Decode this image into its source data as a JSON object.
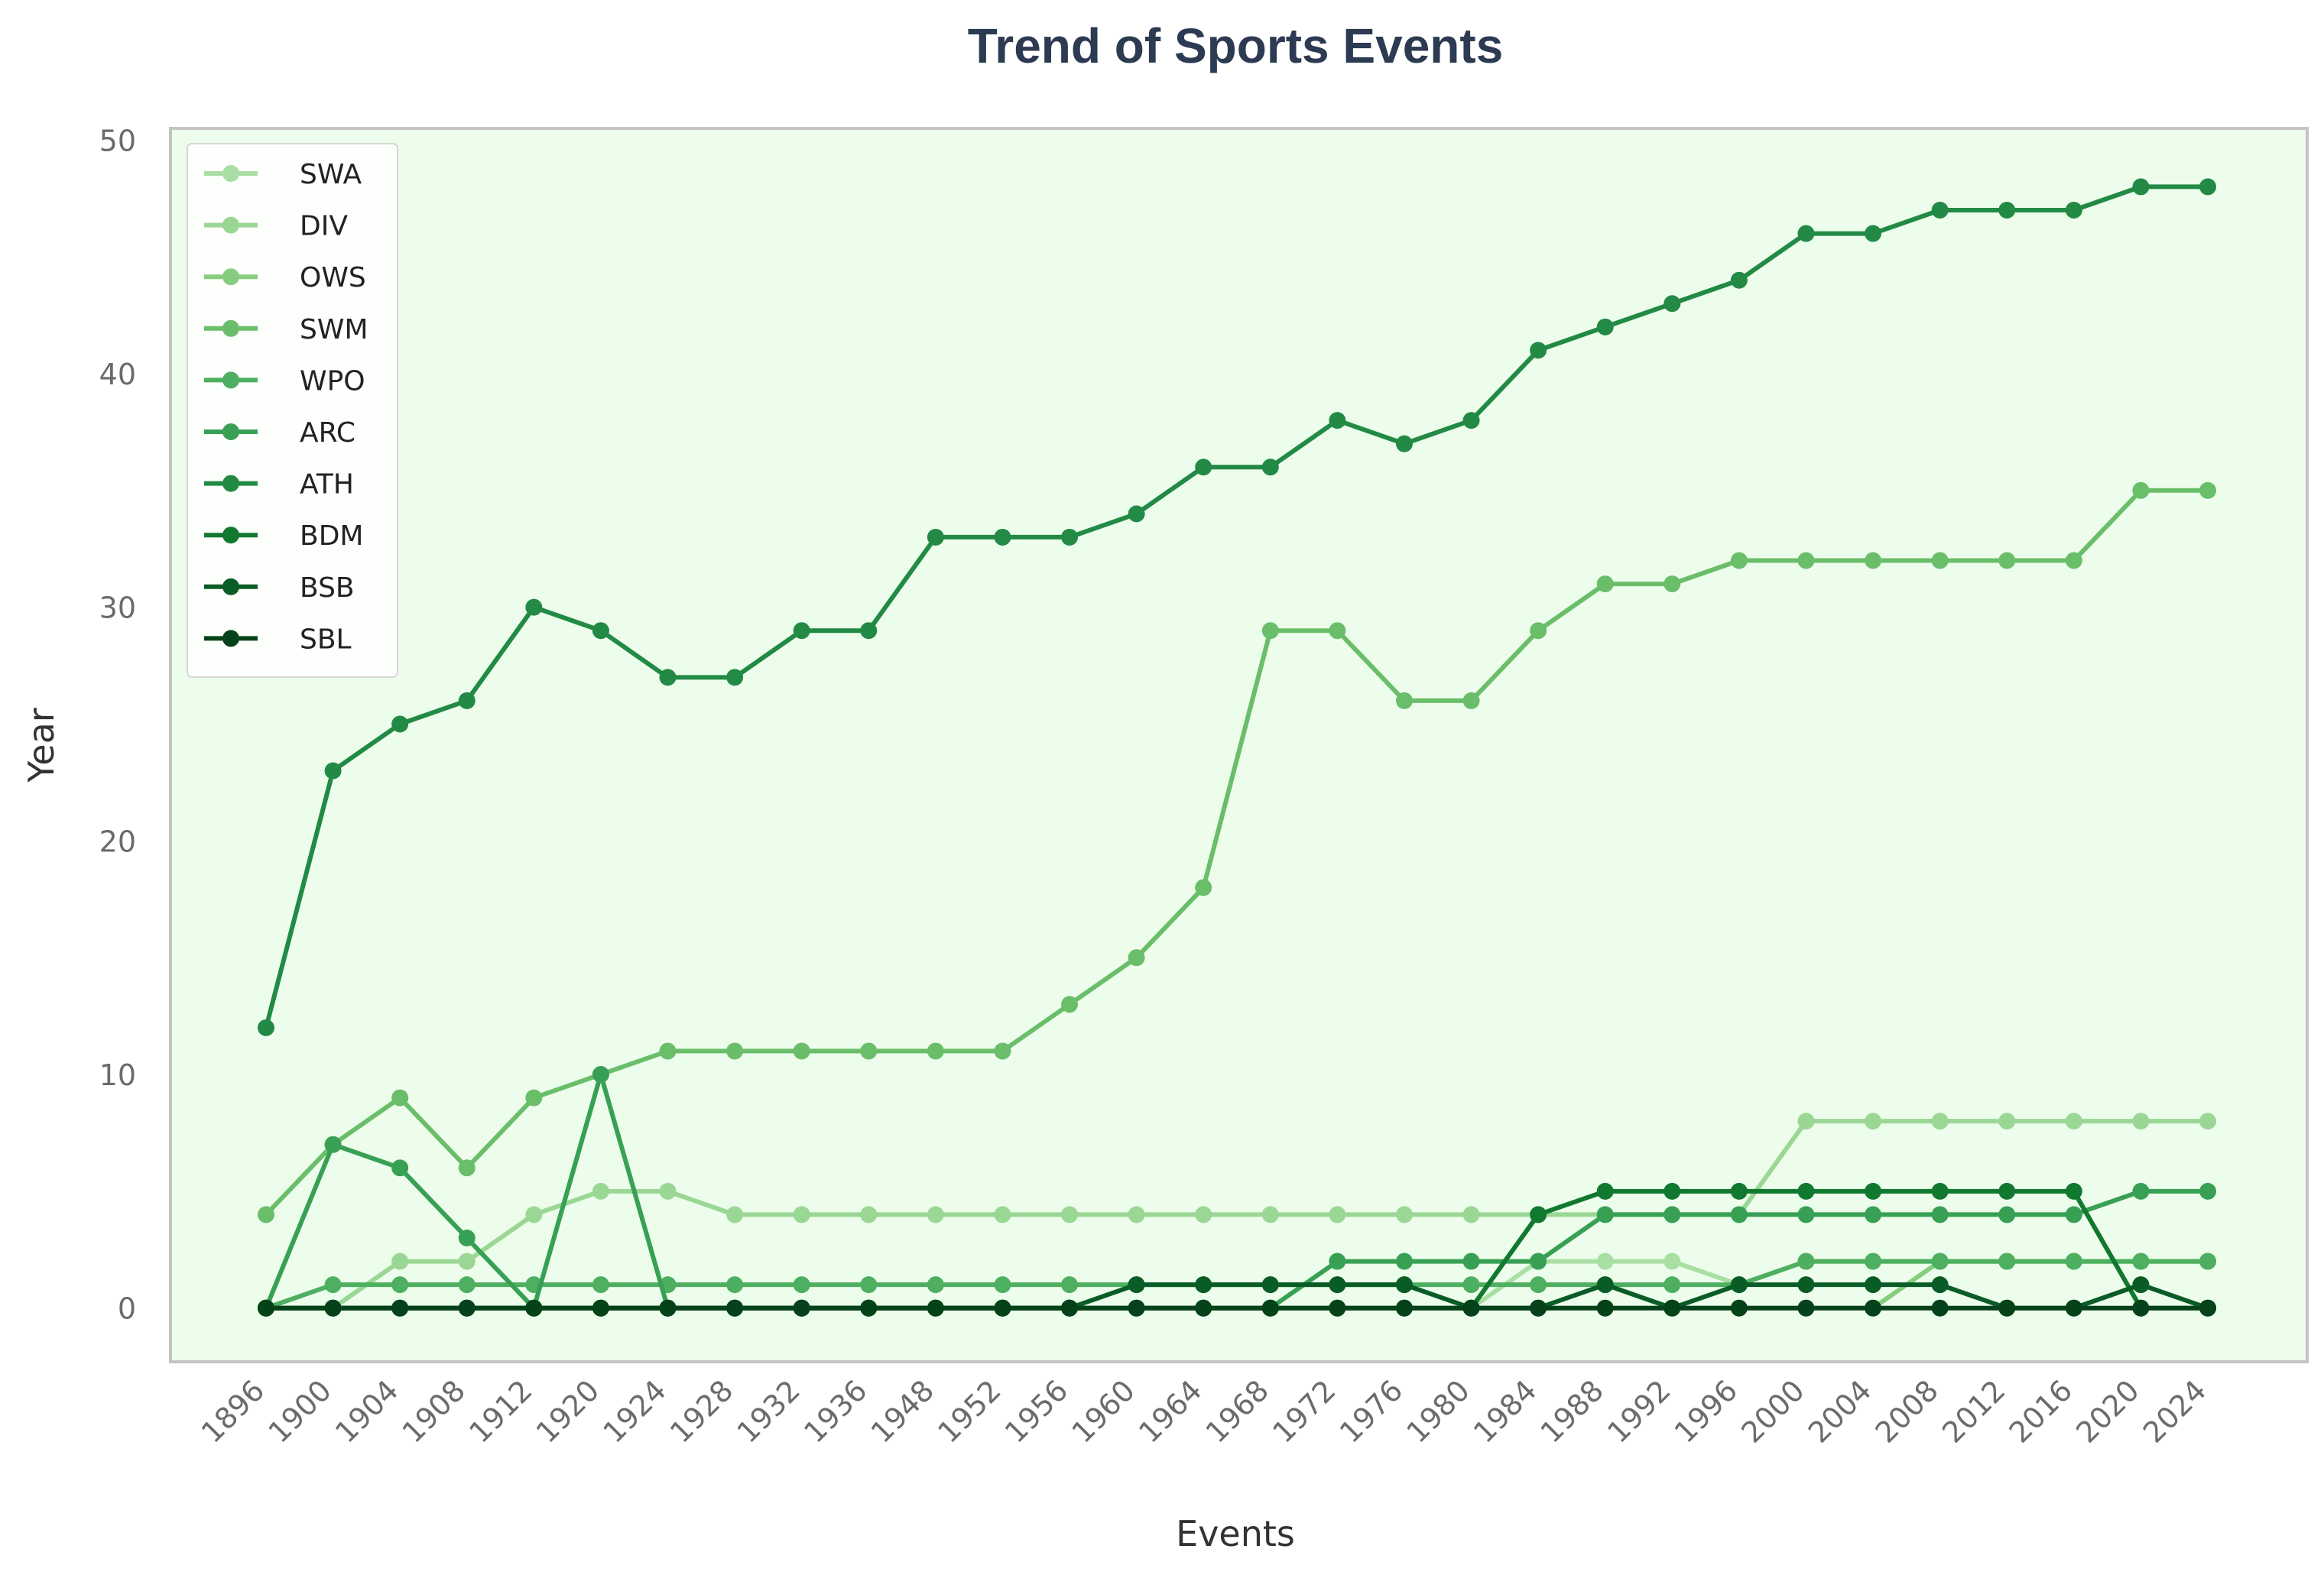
{
  "chart_data": {
    "type": "line",
    "title": "Trend of Sports Events",
    "xlabel": "Events",
    "ylabel": "Year",
    "ylim": [
      -2.3,
      50.5
    ],
    "yticks": [
      0,
      10,
      20,
      30,
      40,
      50
    ],
    "grid": false,
    "legend_position": "top-left",
    "background_color": "#edfdec",
    "categories": [
      "1896",
      "1900",
      "1904",
      "1908",
      "1912",
      "1920",
      "1924",
      "1928",
      "1932",
      "1936",
      "1948",
      "1952",
      "1956",
      "1960",
      "1964",
      "1968",
      "1972",
      "1976",
      "1980",
      "1984",
      "1988",
      "1992",
      "1996",
      "2000",
      "2004",
      "2008",
      "2012",
      "2016",
      "2020",
      "2024"
    ],
    "series": [
      {
        "name": "SWA",
        "color": "#aadfa4",
        "values": [
          0,
          0,
          0,
          0,
          0,
          0,
          0,
          0,
          0,
          0,
          0,
          0,
          0,
          0,
          0,
          0,
          0,
          0,
          0,
          2,
          2,
          2,
          1,
          2,
          2,
          2,
          2,
          2,
          2,
          2
        ]
      },
      {
        "name": "DIV",
        "color": "#9bd794",
        "values": [
          0,
          0,
          2,
          2,
          4,
          5,
          5,
          4,
          4,
          4,
          4,
          4,
          4,
          4,
          4,
          4,
          4,
          4,
          4,
          4,
          4,
          4,
          4,
          8,
          8,
          8,
          8,
          8,
          8,
          8
        ]
      },
      {
        "name": "OWS",
        "color": "#86cd7f",
        "values": [
          0,
          0,
          0,
          0,
          0,
          0,
          0,
          0,
          0,
          0,
          0,
          0,
          0,
          0,
          0,
          0,
          0,
          0,
          0,
          0,
          0,
          0,
          0,
          0,
          0,
          2,
          2,
          2,
          2,
          2
        ]
      },
      {
        "name": "SWM",
        "color": "#6abe6a",
        "values": [
          4,
          7,
          9,
          6,
          9,
          10,
          11,
          11,
          11,
          11,
          11,
          11,
          13,
          15,
          18,
          29,
          29,
          26,
          26,
          29,
          31,
          31,
          32,
          32,
          32,
          32,
          32,
          32,
          35,
          35
        ]
      },
      {
        "name": "WPO",
        "color": "#4daf5f",
        "values": [
          0,
          1,
          1,
          1,
          1,
          1,
          1,
          1,
          1,
          1,
          1,
          1,
          1,
          1,
          1,
          1,
          1,
          1,
          1,
          1,
          1,
          1,
          1,
          2,
          2,
          2,
          2,
          2,
          2,
          2
        ]
      },
      {
        "name": "ARC",
        "color": "#38a055",
        "values": [
          0,
          7,
          6,
          3,
          0,
          10,
          0,
          0,
          0,
          0,
          0,
          0,
          0,
          0,
          0,
          0,
          2,
          2,
          2,
          2,
          4,
          4,
          4,
          4,
          4,
          4,
          4,
          4,
          5,
          5
        ]
      },
      {
        "name": "ATH",
        "color": "#228a45",
        "values": [
          12,
          23,
          25,
          26,
          30,
          29,
          27,
          27,
          29,
          29,
          33,
          33,
          33,
          34,
          36,
          36,
          38,
          37,
          38,
          41,
          42,
          43,
          44,
          46,
          46,
          47,
          47,
          47,
          48,
          48
        ]
      },
      {
        "name": "BDM",
        "color": "#11782f",
        "values": [
          0,
          0,
          0,
          0,
          0,
          0,
          0,
          0,
          0,
          0,
          0,
          0,
          0,
          0,
          0,
          0,
          0,
          0,
          0,
          4,
          5,
          5,
          5,
          5,
          5,
          5,
          5,
          5,
          0,
          0
        ]
      },
      {
        "name": "BSB",
        "color": "#0a5c26",
        "values": [
          0,
          0,
          0,
          0,
          0,
          0,
          0,
          0,
          0,
          0,
          0,
          0,
          0,
          1,
          1,
          1,
          1,
          1,
          0,
          0,
          1,
          0,
          1,
          1,
          1,
          1,
          0,
          0,
          1,
          0
        ]
      },
      {
        "name": "SBL",
        "color": "#064219",
        "values": [
          0,
          0,
          0,
          0,
          0,
          0,
          0,
          0,
          0,
          0,
          0,
          0,
          0,
          0,
          0,
          0,
          0,
          0,
          0,
          0,
          0,
          0,
          0,
          0,
          0,
          0,
          0,
          0,
          0,
          0
        ]
      }
    ]
  }
}
